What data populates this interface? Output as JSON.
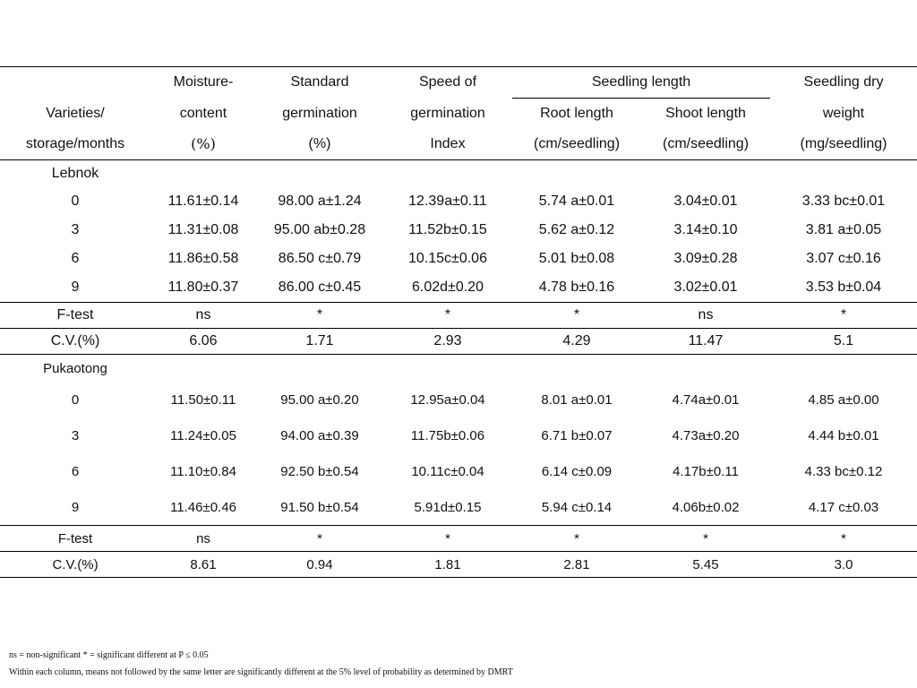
{
  "headers": {
    "varieties_line1": "Varieties/",
    "varieties_line2": "storage/months",
    "moisture_line1": "Moisture-",
    "moisture_line2": "content",
    "moisture_line3": "(%)",
    "standard_line1": "Standard",
    "standard_line2": "germination",
    "standard_line3": "(%)",
    "speed_line1": "Speed of",
    "speed_line2": "germination",
    "speed_line3": "Index",
    "seedling_length": "Seedling length",
    "root_line1": "Root length",
    "root_line2": "(cm/seedling)",
    "shoot_line1": "Shoot length",
    "shoot_line2": "(cm/seedling)",
    "dry_line1": "Seedling dry",
    "dry_line2": "weight",
    "dry_line3": "(mg/seedling)"
  },
  "groups": [
    {
      "name": "Lebnok",
      "rows": [
        {
          "month": "0",
          "mc": "11.61±0.14",
          "sg": "98.00 a±1.24",
          "sp": "12.39a±0.11",
          "rl": "5.74 a±0.01",
          "sl": "3.04±0.01",
          "dw": "3.33 bc±0.01"
        },
        {
          "month": "3",
          "mc": "11.31±0.08",
          "sg": "95.00 ab±0.28",
          "sp": "11.52b±0.15",
          "rl": "5.62 a±0.12",
          "sl": "3.14±0.10",
          "dw": "3.81 a±0.05"
        },
        {
          "month": "6",
          "mc": "11.86±0.58",
          "sg": "86.50 c±0.79",
          "sp": "10.15c±0.06",
          "rl": "5.01 b±0.08",
          "sl": "3.09±0.28",
          "dw": "3.07 c±0.16"
        },
        {
          "month": "9",
          "mc": "11.80±0.37",
          "sg": "86.00 c±0.45",
          "sp": "6.02d±0.20",
          "rl": "4.78 b±0.16",
          "sl": "3.02±0.01",
          "dw": "3.53 b±0.04"
        }
      ],
      "ftest": {
        "label": "F-test",
        "mc": "ns",
        "sg": "*",
        "sp": "*",
        "rl": "*",
        "sl": "ns",
        "dw": "*"
      },
      "cv": {
        "label": "C.V.(%)",
        "mc": "6.06",
        "sg": "1.71",
        "sp": "2.93",
        "rl": "4.29",
        "sl": "11.47",
        "dw": "5.1"
      }
    },
    {
      "name": "Pukaotong",
      "rows": [
        {
          "month": "0",
          "mc": "11.50±0.11",
          "sg": "95.00 a±0.20",
          "sp": "12.95a±0.04",
          "rl": "8.01 a±0.01",
          "sl": "4.74a±0.01",
          "dw": "4.85 a±0.00"
        },
        {
          "month": "3",
          "mc": "11.24±0.05",
          "sg": "94.00 a±0.39",
          "sp": "11.75b±0.06",
          "rl": "6.71 b±0.07",
          "sl": "4.73a±0.20",
          "dw": "4.44 b±0.01"
        },
        {
          "month": "6",
          "mc": "11.10±0.84",
          "sg": "92.50 b±0.54",
          "sp": "10.11c±0.04",
          "rl": "6.14 c±0.09",
          "sl": "4.17b±0.11",
          "dw": "4.33 bc±0.12"
        },
        {
          "month": "9",
          "mc": "11.46±0.46",
          "sg": "91.50 b±0.54",
          "sp": "5.91d±0.15",
          "rl": "5.94 c±0.14",
          "sl": "4.06b±0.02",
          "dw": "4.17 c±0.03"
        }
      ],
      "ftest": {
        "label": "F-test",
        "mc": "ns",
        "sg": "*",
        "sp": "*",
        "rl": "*",
        "sl": "*",
        "dw": "*"
      },
      "cv": {
        "label": "C.V.(%)",
        "mc": "8.61",
        "sg": "0.94",
        "sp": "1.81",
        "rl": "2.81",
        "sl": "5.45",
        "dw": "3.0"
      }
    }
  ],
  "footnotes": {
    "line1": "ns = non-significant * =  significant different at P ≤ 0.05",
    "line2": "Within each column, means not followed by the same letter are significantly different at the 5% level of probability as determined by DMRT"
  }
}
